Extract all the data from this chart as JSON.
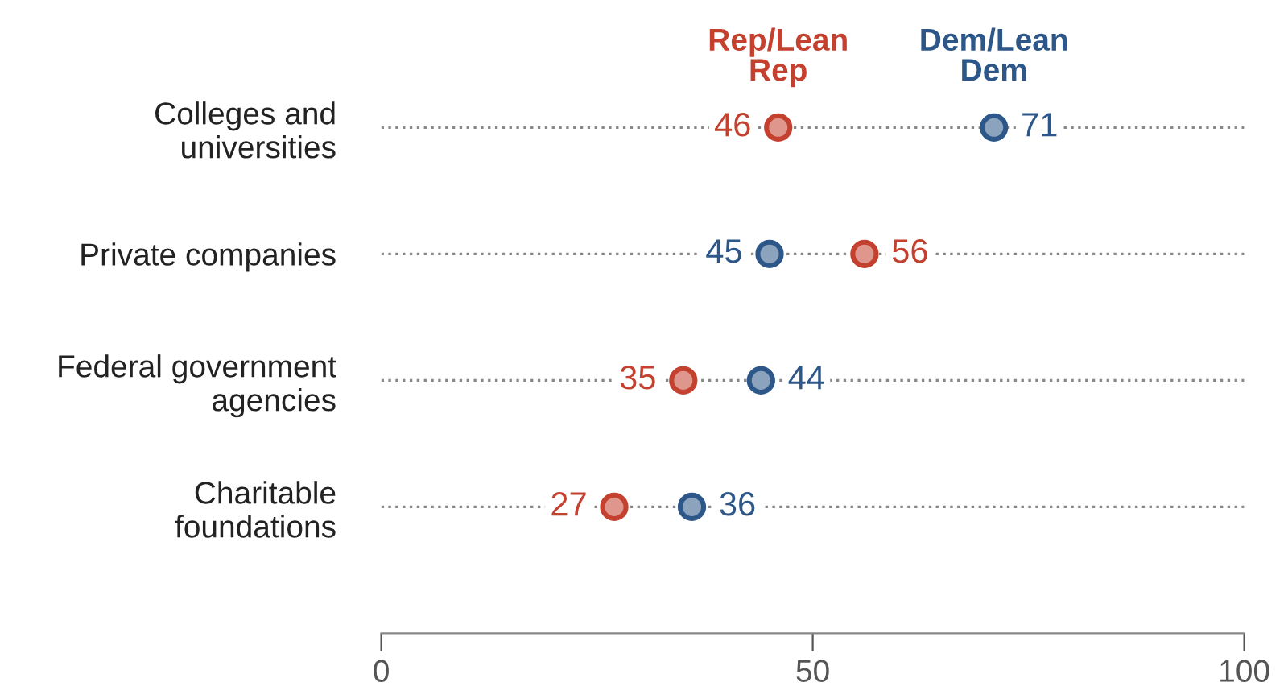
{
  "chart_data": {
    "type": "scatter",
    "orientation": "horizontal",
    "categories": [
      "Colleges and\nuniversities",
      "Private companies",
      "Federal government\nagencies",
      "Charitable\nfoundations"
    ],
    "series": [
      {
        "name": "Rep/Lean\nRep",
        "color": "#c4402f",
        "values": [
          46,
          56,
          35,
          27
        ]
      },
      {
        "name": "Dem/Lean\nDem",
        "color": "#2d5788",
        "values": [
          71,
          45,
          44,
          36
        ]
      }
    ],
    "xlim": [
      0,
      100
    ],
    "xticks": [
      0,
      50,
      100
    ],
    "grid": "y",
    "line_style": "dotted",
    "marker": "circle",
    "data_labels": true,
    "legend": false
  }
}
